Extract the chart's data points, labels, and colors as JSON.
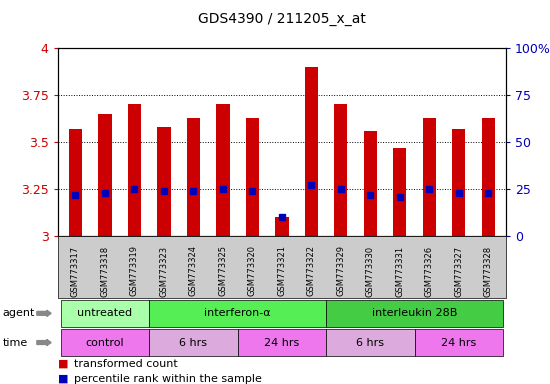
{
  "title": "GDS4390 / 211205_x_at",
  "samples": [
    "GSM773317",
    "GSM773318",
    "GSM773319",
    "GSM773323",
    "GSM773324",
    "GSM773325",
    "GSM773320",
    "GSM773321",
    "GSM773322",
    "GSM773329",
    "GSM773330",
    "GSM773331",
    "GSM773326",
    "GSM773327",
    "GSM773328"
  ],
  "transformed_counts": [
    3.57,
    3.65,
    3.7,
    3.58,
    3.63,
    3.7,
    3.63,
    3.1,
    3.9,
    3.7,
    3.56,
    3.47,
    3.63,
    3.57,
    3.63
  ],
  "percentile_ranks": [
    22,
    23,
    25,
    24,
    24,
    25,
    24,
    10,
    27,
    25,
    22,
    21,
    25,
    23,
    23
  ],
  "ymin": 3.0,
  "ymax": 4.0,
  "yticks": [
    3.0,
    3.25,
    3.5,
    3.75,
    4.0
  ],
  "ytick_labels": [
    "3",
    "3.25",
    "3.5",
    "3.75",
    "4"
  ],
  "right_yticks": [
    0,
    25,
    50,
    75,
    100
  ],
  "right_ytick_labels": [
    "0",
    "25",
    "50",
    "75",
    "100%"
  ],
  "bar_color": "#CC0000",
  "dot_color": "#0000BB",
  "plot_bg_color": "#FFFFFF",
  "agent_groups": [
    {
      "label": "untreated",
      "start": 0,
      "end": 3,
      "color": "#AAFFAA"
    },
    {
      "label": "interferon-α",
      "start": 3,
      "end": 9,
      "color": "#55EE55"
    },
    {
      "label": "interleukin 28B",
      "start": 9,
      "end": 15,
      "color": "#44CC44"
    }
  ],
  "time_groups": [
    {
      "label": "control",
      "start": 0,
      "end": 3,
      "color": "#EE77EE"
    },
    {
      "label": "6 hrs",
      "start": 3,
      "end": 6,
      "color": "#DDAADD"
    },
    {
      "label": "24 hrs",
      "start": 6,
      "end": 9,
      "color": "#EE77EE"
    },
    {
      "label": "6 hrs",
      "start": 9,
      "end": 12,
      "color": "#DDAADD"
    },
    {
      "label": "24 hrs",
      "start": 12,
      "end": 15,
      "color": "#EE77EE"
    }
  ],
  "legend_items": [
    {
      "color": "#CC0000",
      "label": "transformed count"
    },
    {
      "color": "#0000BB",
      "label": "percentile rank within the sample"
    }
  ],
  "tick_label_color_left": "#CC0000",
  "tick_label_color_right": "#0000BB",
  "xtick_bg_color": "#CCCCCC",
  "bar_width": 0.45,
  "dot_size": 4
}
